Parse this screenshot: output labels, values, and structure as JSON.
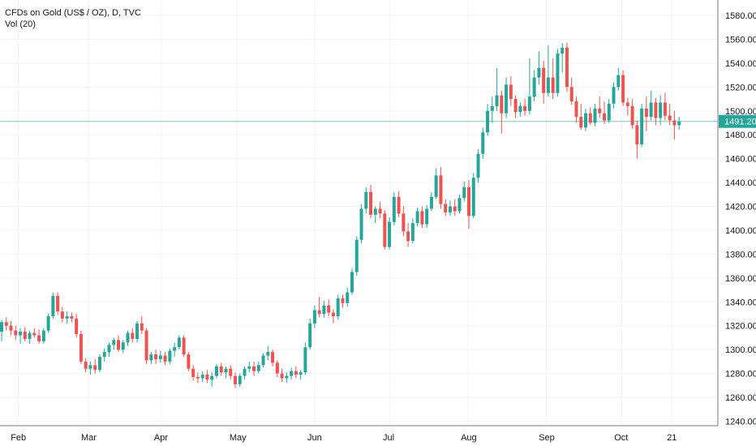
{
  "legend": {
    "symbol": "CFDs on Gold (US$ / OZ), D, TVC",
    "volume": "Vol (20)"
  },
  "colors": {
    "up": "#26a69a",
    "down": "#ef5350",
    "grid": "#f0f3fa",
    "axis": "#787b86",
    "price_line": "#26a69a"
  },
  "chart_data": {
    "type": "candlestick",
    "title": "CFDs on Gold (US$ / OZ), D, TVC",
    "ylim": [
      1240,
      1590
    ],
    "y_ticks": [
      "1580.00",
      "1560.00",
      "1540.00",
      "1520.00",
      "1500.00",
      "1480.00",
      "1460.00",
      "1440.00",
      "1420.00",
      "1400.00",
      "1380.00",
      "1360.00",
      "1340.00",
      "1320.00",
      "1300.00",
      "1280.00",
      "1260.00",
      "1240.00"
    ],
    "x_ticks": [
      {
        "label": "Feb",
        "day": 2
      },
      {
        "label": "Mar",
        "day": 30
      },
      {
        "label": "Apr",
        "day": 59
      },
      {
        "label": "May",
        "day": 89
      },
      {
        "label": "Jun",
        "day": 120
      },
      {
        "label": "Jul",
        "day": 150
      },
      {
        "label": "Aug",
        "day": 181
      },
      {
        "label": "Sep",
        "day": 212
      },
      {
        "label": "Oct",
        "day": 242
      },
      {
        "label": "21",
        "day": 262
      }
    ],
    "last_price": "1491.20",
    "last_value": 1491.2,
    "candles": [
      [
        0,
        1315,
        1325,
        1307,
        1323
      ],
      [
        1,
        1323,
        1327,
        1316,
        1320
      ],
      [
        2,
        1320,
        1324,
        1312,
        1316
      ],
      [
        3,
        1316,
        1320,
        1308,
        1312
      ],
      [
        4,
        1312,
        1318,
        1305,
        1315
      ],
      [
        5,
        1315,
        1319,
        1307,
        1309
      ],
      [
        6,
        1309,
        1316,
        1305,
        1314
      ],
      [
        7,
        1314,
        1318,
        1310,
        1312
      ],
      [
        8,
        1312,
        1317,
        1305,
        1307
      ],
      [
        9,
        1307,
        1318,
        1305,
        1316
      ],
      [
        10,
        1316,
        1330,
        1314,
        1328
      ],
      [
        11,
        1328,
        1348,
        1326,
        1345
      ],
      [
        12,
        1345,
        1348,
        1329,
        1332
      ],
      [
        13,
        1332,
        1336,
        1323,
        1326
      ],
      [
        14,
        1326,
        1332,
        1322,
        1328
      ],
      [
        15,
        1328,
        1331,
        1323,
        1326
      ],
      [
        16,
        1326,
        1330,
        1310,
        1313
      ],
      [
        17,
        1313,
        1316,
        1288,
        1290
      ],
      [
        18,
        1290,
        1293,
        1281,
        1284
      ],
      [
        19,
        1284,
        1290,
        1279,
        1287
      ],
      [
        20,
        1287,
        1292,
        1280,
        1283
      ],
      [
        21,
        1283,
        1296,
        1281,
        1294
      ],
      [
        22,
        1294,
        1301,
        1290,
        1298
      ],
      [
        23,
        1298,
        1306,
        1294,
        1304
      ],
      [
        24,
        1304,
        1310,
        1300,
        1308
      ],
      [
        25,
        1308,
        1312,
        1298,
        1300
      ],
      [
        26,
        1300,
        1308,
        1297,
        1306
      ],
      [
        27,
        1306,
        1316,
        1303,
        1314
      ],
      [
        28,
        1314,
        1318,
        1306,
        1309
      ],
      [
        29,
        1309,
        1324,
        1306,
        1322
      ],
      [
        30,
        1322,
        1328,
        1313,
        1316
      ],
      [
        31,
        1316,
        1318,
        1288,
        1291
      ],
      [
        32,
        1291,
        1298,
        1288,
        1296
      ],
      [
        33,
        1296,
        1300,
        1288,
        1292
      ],
      [
        34,
        1292,
        1299,
        1289,
        1295
      ],
      [
        35,
        1295,
        1298,
        1287,
        1290
      ],
      [
        36,
        1290,
        1301,
        1288,
        1299
      ],
      [
        37,
        1299,
        1306,
        1294,
        1302
      ],
      [
        38,
        1302,
        1312,
        1300,
        1310
      ],
      [
        39,
        1310,
        1312,
        1294,
        1296
      ],
      [
        40,
        1296,
        1298,
        1282,
        1284
      ],
      [
        41,
        1284,
        1287,
        1274,
        1277
      ],
      [
        42,
        1277,
        1281,
        1272,
        1276
      ],
      [
        43,
        1276,
        1282,
        1273,
        1279
      ],
      [
        44,
        1279,
        1283,
        1272,
        1275
      ],
      [
        45,
        1275,
        1281,
        1269,
        1278
      ],
      [
        46,
        1278,
        1288,
        1276,
        1286
      ],
      [
        47,
        1286,
        1289,
        1278,
        1281
      ],
      [
        48,
        1281,
        1286,
        1276,
        1284
      ],
      [
        49,
        1284,
        1287,
        1275,
        1278
      ],
      [
        50,
        1278,
        1281,
        1268,
        1271
      ],
      [
        51,
        1271,
        1280,
        1269,
        1278
      ],
      [
        52,
        1278,
        1286,
        1275,
        1284
      ],
      [
        53,
        1284,
        1290,
        1281,
        1286
      ],
      [
        54,
        1286,
        1290,
        1278,
        1282
      ],
      [
        55,
        1282,
        1290,
        1280,
        1287
      ],
      [
        56,
        1287,
        1297,
        1285,
        1295
      ],
      [
        57,
        1295,
        1303,
        1291,
        1298
      ],
      [
        58,
        1298,
        1300,
        1286,
        1289
      ],
      [
        59,
        1289,
        1291,
        1277,
        1280
      ],
      [
        60,
        1280,
        1284,
        1273,
        1276
      ],
      [
        61,
        1276,
        1281,
        1272,
        1278
      ],
      [
        62,
        1278,
        1285,
        1275,
        1282
      ],
      [
        63,
        1282,
        1286,
        1276,
        1279
      ],
      [
        64,
        1279,
        1283,
        1275,
        1281
      ],
      [
        65,
        1281,
        1306,
        1279,
        1302
      ],
      [
        66,
        1302,
        1326,
        1300,
        1322
      ],
      [
        67,
        1322,
        1337,
        1318,
        1333
      ],
      [
        68,
        1333,
        1344,
        1327,
        1330
      ],
      [
        69,
        1330,
        1341,
        1327,
        1337
      ],
      [
        70,
        1337,
        1342,
        1328,
        1331
      ],
      [
        71,
        1331,
        1334,
        1322,
        1328
      ],
      [
        72,
        1328,
        1346,
        1325,
        1343
      ],
      [
        73,
        1343,
        1346,
        1335,
        1339
      ],
      [
        74,
        1339,
        1352,
        1336,
        1348
      ],
      [
        75,
        1348,
        1368,
        1346,
        1365
      ],
      [
        76,
        1365,
        1395,
        1362,
        1392
      ],
      [
        77,
        1392,
        1422,
        1389,
        1418
      ],
      [
        78,
        1418,
        1436,
        1414,
        1432
      ],
      [
        79,
        1432,
        1438,
        1410,
        1413
      ],
      [
        80,
        1413,
        1420,
        1406,
        1418
      ],
      [
        81,
        1418,
        1424,
        1410,
        1414
      ],
      [
        82,
        1414,
        1417,
        1384,
        1386
      ],
      [
        83,
        1386,
        1411,
        1384,
        1407
      ],
      [
        84,
        1407,
        1432,
        1404,
        1428
      ],
      [
        85,
        1428,
        1433,
        1411,
        1414
      ],
      [
        86,
        1414,
        1420,
        1395,
        1399
      ],
      [
        87,
        1399,
        1406,
        1386,
        1391
      ],
      [
        88,
        1391,
        1410,
        1389,
        1406
      ],
      [
        89,
        1406,
        1419,
        1403,
        1416
      ],
      [
        90,
        1416,
        1420,
        1402,
        1405
      ],
      [
        91,
        1405,
        1421,
        1402,
        1418
      ],
      [
        92,
        1418,
        1432,
        1416,
        1428
      ],
      [
        93,
        1428,
        1452,
        1426,
        1446
      ],
      [
        94,
        1446,
        1453,
        1418,
        1422
      ],
      [
        95,
        1422,
        1426,
        1412,
        1415
      ],
      [
        96,
        1415,
        1425,
        1412,
        1420
      ],
      [
        97,
        1420,
        1426,
        1412,
        1416
      ],
      [
        98,
        1416,
        1430,
        1414,
        1427
      ],
      [
        99,
        1427,
        1441,
        1424,
        1436
      ],
      [
        100,
        1436,
        1442,
        1401,
        1412
      ],
      [
        101,
        1412,
        1448,
        1410,
        1444
      ],
      [
        102,
        1444,
        1468,
        1440,
        1464
      ],
      [
        103,
        1464,
        1486,
        1460,
        1482
      ],
      [
        104,
        1482,
        1506,
        1479,
        1500
      ],
      [
        105,
        1500,
        1512,
        1490,
        1504
      ],
      [
        106,
        1504,
        1536,
        1500,
        1513
      ],
      [
        107,
        1513,
        1517,
        1481,
        1498
      ],
      [
        108,
        1498,
        1528,
        1494,
        1522
      ],
      [
        109,
        1522,
        1529,
        1504,
        1510
      ],
      [
        110,
        1510,
        1513,
        1494,
        1499
      ],
      [
        111,
        1499,
        1507,
        1495,
        1504
      ],
      [
        112,
        1504,
        1510,
        1496,
        1500
      ],
      [
        113,
        1500,
        1544,
        1497,
        1512
      ],
      [
        114,
        1512,
        1534,
        1508,
        1528
      ],
      [
        115,
        1528,
        1550,
        1522,
        1536
      ],
      [
        116,
        1536,
        1542,
        1506,
        1515
      ],
      [
        117,
        1515,
        1555,
        1512,
        1528
      ],
      [
        118,
        1528,
        1544,
        1510,
        1515
      ],
      [
        119,
        1515,
        1552,
        1512,
        1548
      ],
      [
        120,
        1548,
        1557,
        1532,
        1553
      ],
      [
        121,
        1553,
        1557,
        1516,
        1520
      ],
      [
        122,
        1520,
        1528,
        1505,
        1508
      ],
      [
        123,
        1508,
        1512,
        1490,
        1495
      ],
      [
        124,
        1495,
        1506,
        1484,
        1486
      ],
      [
        125,
        1486,
        1502,
        1483,
        1498
      ],
      [
        126,
        1498,
        1503,
        1488,
        1490
      ],
      [
        127,
        1490,
        1506,
        1487,
        1502
      ],
      [
        128,
        1502,
        1512,
        1494,
        1498
      ],
      [
        129,
        1498,
        1508,
        1489,
        1492
      ],
      [
        130,
        1492,
        1510,
        1490,
        1506
      ],
      [
        131,
        1506,
        1524,
        1502,
        1520
      ],
      [
        132,
        1520,
        1536,
        1517,
        1530
      ],
      [
        133,
        1530,
        1534,
        1504,
        1507
      ],
      [
        134,
        1507,
        1511,
        1496,
        1504
      ],
      [
        135,
        1504,
        1510,
        1485,
        1488
      ],
      [
        136,
        1488,
        1492,
        1460,
        1472
      ],
      [
        137,
        1472,
        1506,
        1470,
        1502
      ],
      [
        138,
        1502,
        1512,
        1483,
        1495
      ],
      [
        139,
        1495,
        1517,
        1492,
        1507
      ],
      [
        140,
        1507,
        1511,
        1488,
        1494
      ],
      [
        141,
        1494,
        1513,
        1488,
        1507
      ],
      [
        142,
        1507,
        1515,
        1492,
        1496
      ],
      [
        143,
        1496,
        1506,
        1488,
        1492
      ],
      [
        144,
        1492,
        1500,
        1476,
        1488
      ],
      [
        145,
        1488,
        1495,
        1484,
        1491
      ]
    ]
  }
}
